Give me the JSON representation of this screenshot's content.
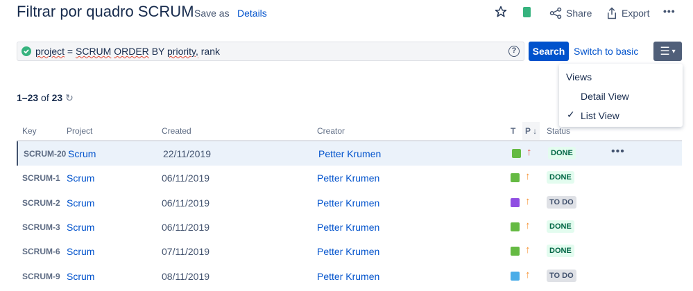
{
  "header": {
    "title": "Filtrar por quadro SCRUM",
    "save_as": "Save as",
    "details": "Details",
    "share": "Share",
    "export": "Export",
    "more": "•••"
  },
  "search": {
    "query_parts": [
      "project",
      "=",
      "SCRUM",
      "ORDER",
      "BY",
      "priority,",
      "rank"
    ],
    "query": "project = SCRUM ORDER BY priority, rank",
    "help": "?",
    "button": "Search",
    "switch": "Switch to basic"
  },
  "views_menu": {
    "heading": "Views",
    "items": [
      {
        "label": "Detail View",
        "checked": false
      },
      {
        "label": "List View",
        "checked": true
      }
    ],
    "check": "✓"
  },
  "results": {
    "range": "1–23",
    "of": "of",
    "total": "23"
  },
  "columns": {
    "key": "Key",
    "project": "Project",
    "created": "Created",
    "creator": "Creator",
    "t": "T",
    "p": "P",
    "sort": "↓",
    "status": "Status"
  },
  "rows": [
    {
      "key": "SCRUM-20",
      "project": "Scrum",
      "created": "22/11/2019",
      "creator": "Petter Krumen",
      "type": "story",
      "priority": "highest",
      "status": "DONE"
    },
    {
      "key": "SCRUM-1",
      "project": "Scrum",
      "created": "06/11/2019",
      "creator": "Petter Krumen",
      "type": "story",
      "priority": "high",
      "status": "DONE"
    },
    {
      "key": "SCRUM-2",
      "project": "Scrum",
      "created": "06/11/2019",
      "creator": "Petter Krumen",
      "type": "epic",
      "priority": "high",
      "status": "TO DO"
    },
    {
      "key": "SCRUM-3",
      "project": "Scrum",
      "created": "06/11/2019",
      "creator": "Petter Krumen",
      "type": "story",
      "priority": "high",
      "status": "DONE"
    },
    {
      "key": "SCRUM-6",
      "project": "Scrum",
      "created": "07/11/2019",
      "creator": "Petter Krumen",
      "type": "story",
      "priority": "high",
      "status": "DONE"
    },
    {
      "key": "SCRUM-9",
      "project": "Scrum",
      "created": "08/11/2019",
      "creator": "Petter Krumen",
      "type": "subtask",
      "priority": "high",
      "status": "TO DO"
    }
  ],
  "colors": {
    "primary": "#0052cc",
    "story": "#65ba43",
    "epic": "#904ee2",
    "subtask": "#4bade8",
    "highest": "#e5493a",
    "high": "#f79232",
    "done_bg": "#e3fcef",
    "todo_bg": "#dfe1e6"
  }
}
